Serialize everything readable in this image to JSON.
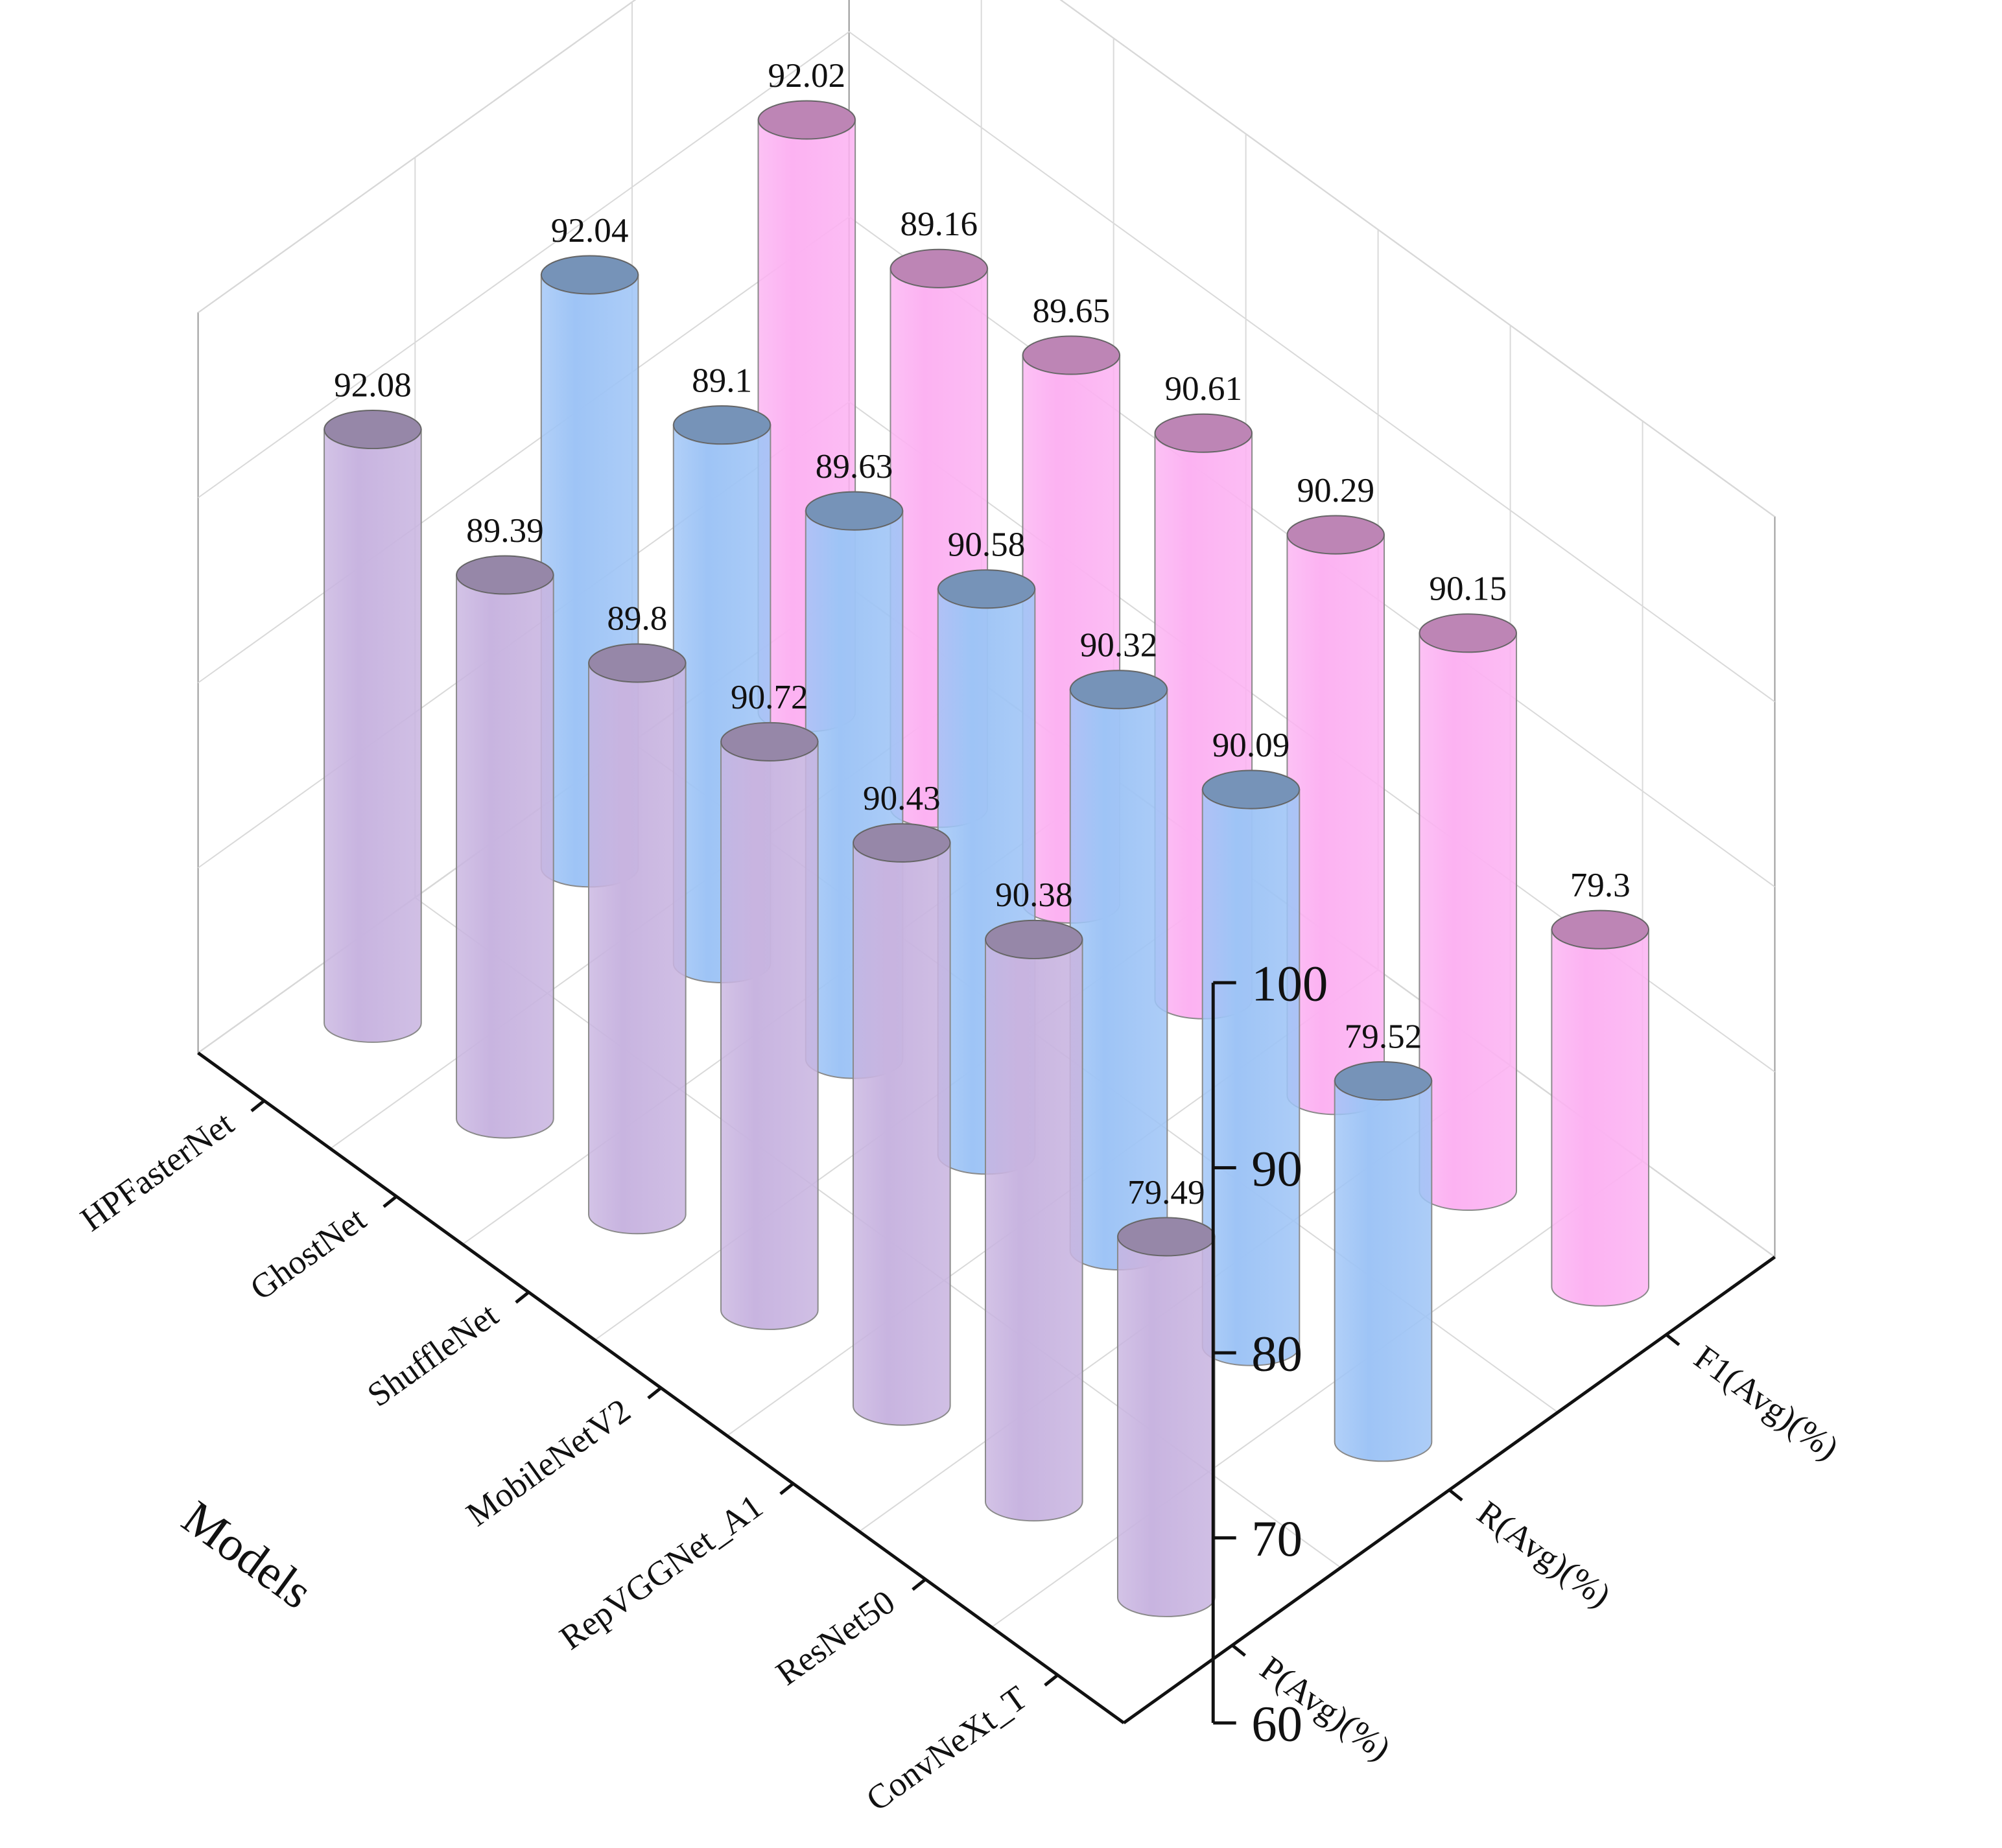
{
  "chart_data": {
    "type": "bar3d",
    "axis_title": "Models",
    "categories": [
      "HPFasterNet",
      "GhostNet",
      "ShuffleNet",
      "MobileNetV2",
      "RepVGGNet_A1",
      "ResNet50",
      "ConvNeXt_T"
    ],
    "series": [
      {
        "name": "P(Avg)(%)",
        "color": "#c8b4e0",
        "values": [
          92.08,
          89.39,
          89.8,
          90.72,
          90.43,
          90.38,
          79.49
        ]
      },
      {
        "name": "R(Avg)(%)",
        "color": "#9ec4f6",
        "values": [
          92.04,
          89.1,
          89.63,
          90.58,
          90.32,
          90.09,
          79.52
        ]
      },
      {
        "name": "F1(Avg)(%)",
        "color": "#fcb2f2",
        "values": [
          92.02,
          89.16,
          89.65,
          90.61,
          90.29,
          90.15,
          79.3
        ]
      }
    ],
    "zlim": [
      60,
      100
    ],
    "zticks": [
      60,
      70,
      80,
      90,
      100
    ],
    "grid": true
  }
}
